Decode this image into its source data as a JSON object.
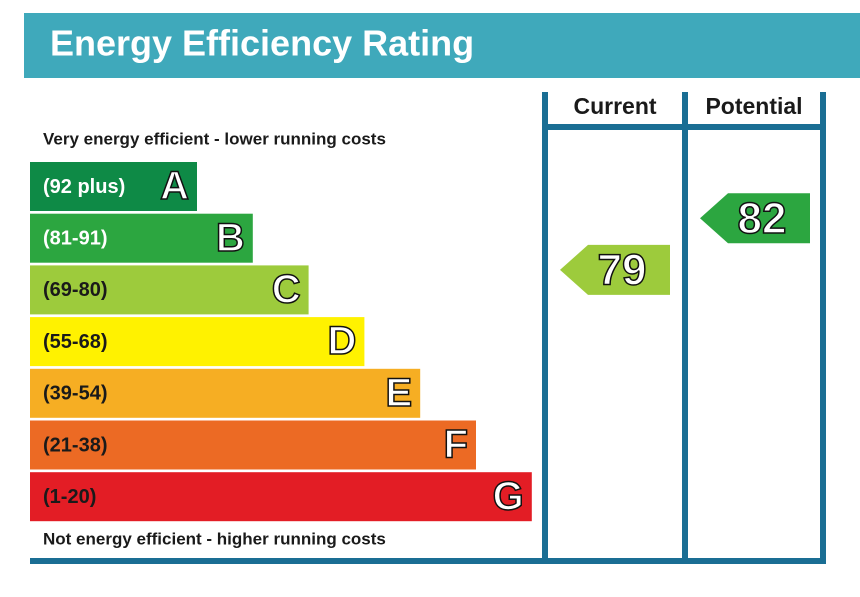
{
  "title": "Energy Efficiency Rating",
  "columns": [
    "Current",
    "Potential"
  ],
  "top_note": "Very energy efficient - lower running costs",
  "bottom_note": "Not energy efficient - higher running costs",
  "bands": [
    {
      "range": "(92 plus)",
      "letter": "A",
      "color": "#0e8a46",
      "text_color": "#ffffff"
    },
    {
      "range": "(81-91)",
      "letter": "B",
      "color": "#2ca640",
      "text_color": "#ffffff"
    },
    {
      "range": "(69-80)",
      "letter": "C",
      "color": "#9dcb3c",
      "text_color": "#1a1a1a"
    },
    {
      "range": "(55-68)",
      "letter": "D",
      "color": "#fff200",
      "text_color": "#1a1a1a"
    },
    {
      "range": "(39-54)",
      "letter": "E",
      "color": "#f6ae23",
      "text_color": "#1a1a1a"
    },
    {
      "range": "(21-38)",
      "letter": "F",
      "color": "#ec6a24",
      "text_color": "#1a1a1a"
    },
    {
      "range": "(1-20)",
      "letter": "G",
      "color": "#e31d25",
      "text_color": "#1a1a1a"
    }
  ],
  "ratings": {
    "current": 79,
    "potential": 82
  }
}
